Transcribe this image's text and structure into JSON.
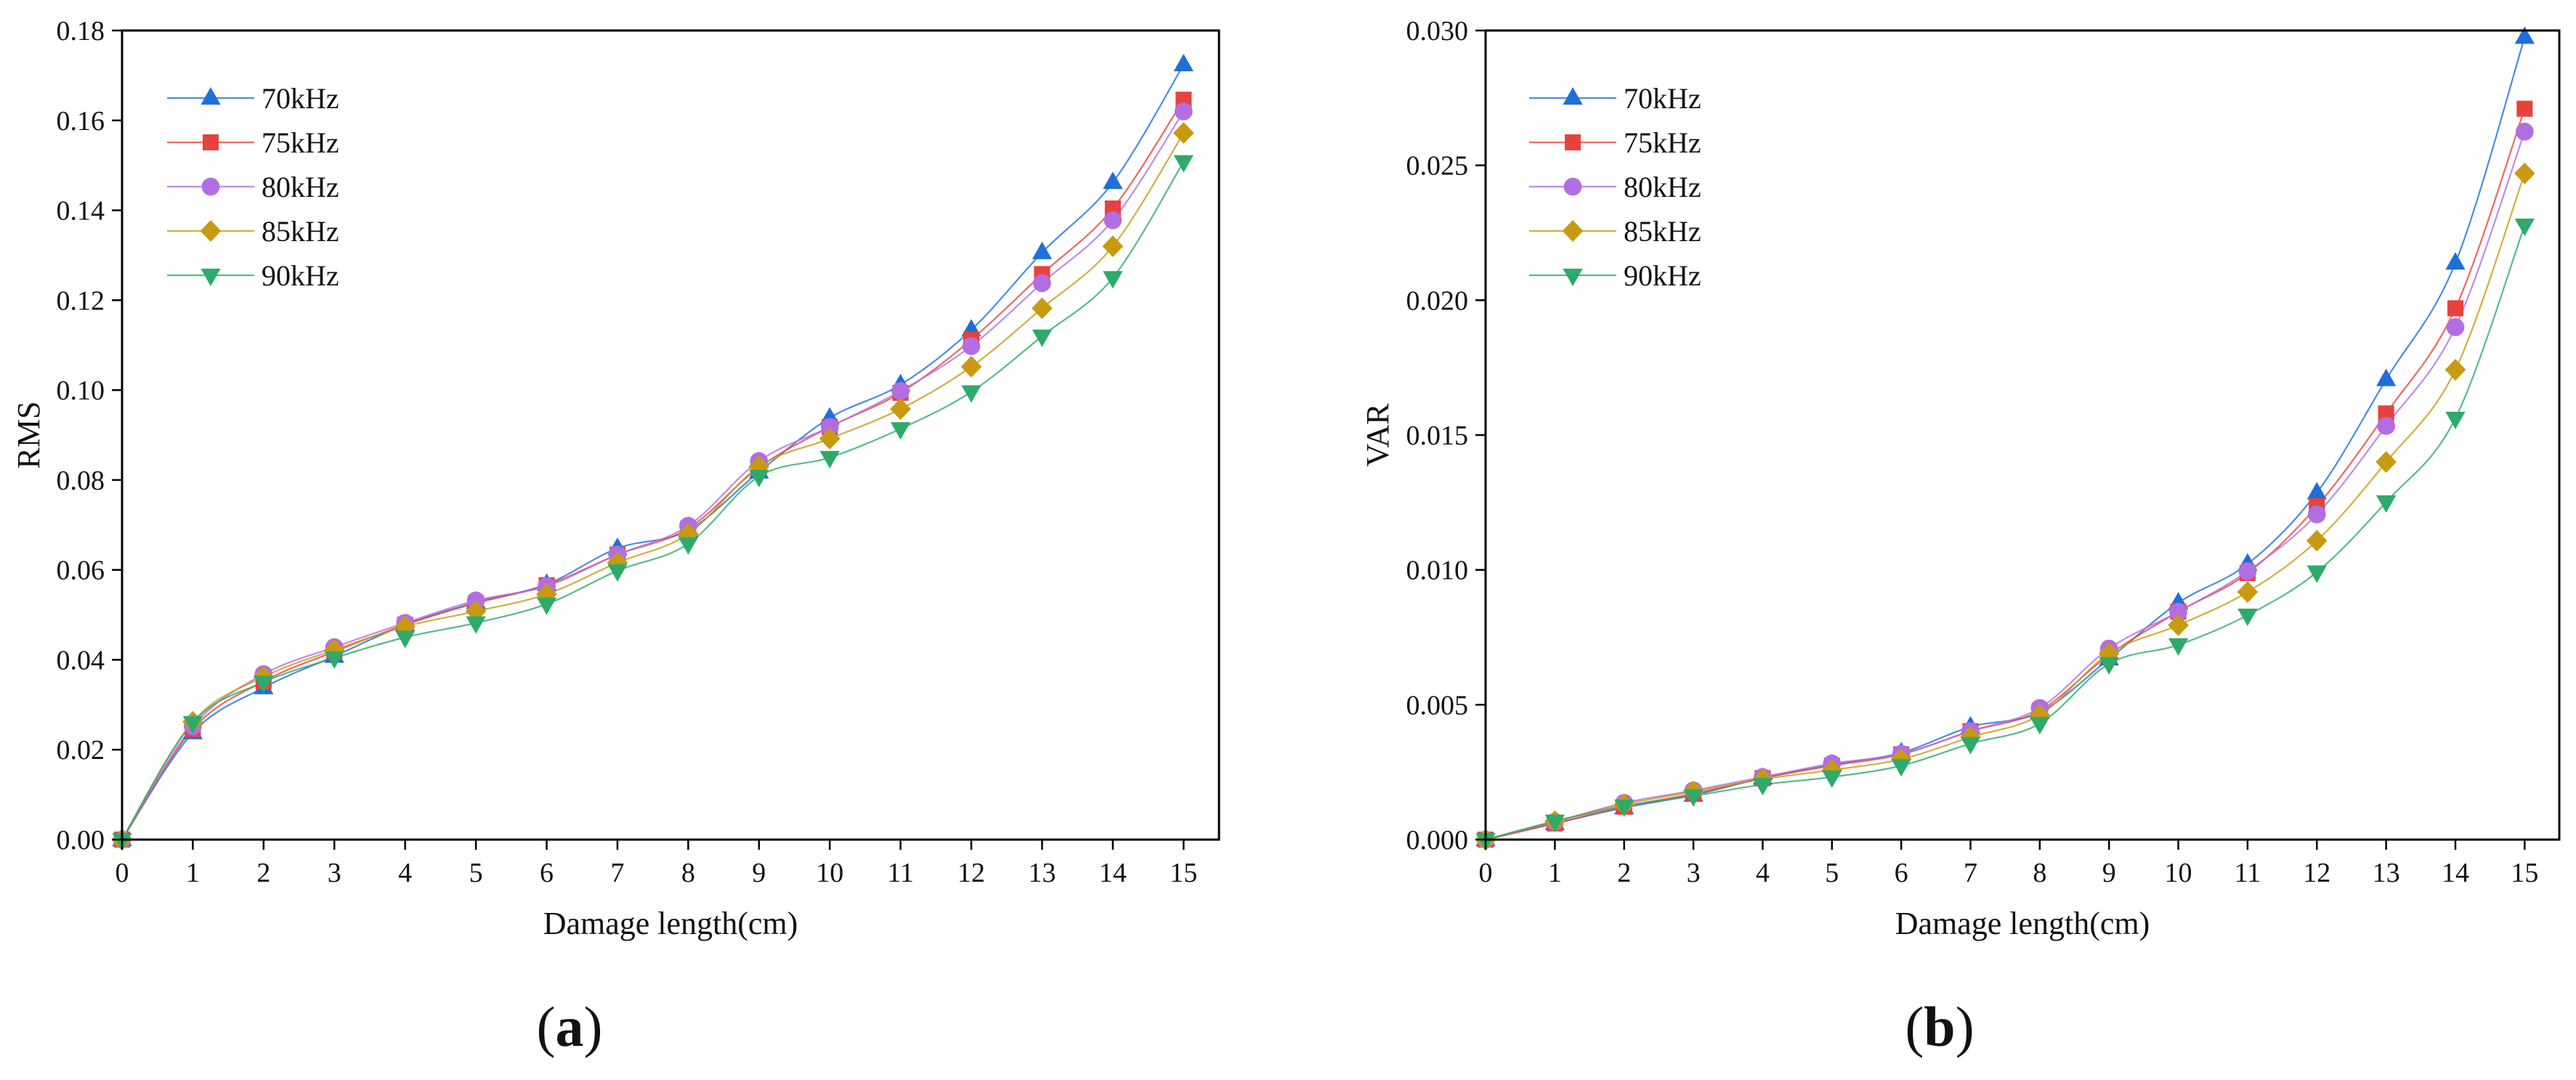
{
  "chart_data": [
    {
      "type": "line",
      "panel": "a",
      "xlabel": "Damage length(cm)",
      "ylabel": "RMS",
      "xlim": [
        0,
        15.5
      ],
      "ylim": [
        0,
        0.18
      ],
      "xticks": [
        0,
        1,
        2,
        3,
        4,
        5,
        6,
        7,
        8,
        9,
        10,
        11,
        12,
        13,
        14,
        15
      ],
      "yticks": [
        0.0,
        0.02,
        0.04,
        0.06,
        0.08,
        0.1,
        0.12,
        0.14,
        0.16,
        0.18
      ],
      "ytick_labels": [
        "0.00",
        "0.02",
        "0.04",
        "0.06",
        "0.08",
        "0.10",
        "0.12",
        "0.14",
        "0.16",
        "0.18"
      ],
      "legend_position": "top-left",
      "x": [
        0,
        1,
        2,
        3,
        4,
        5,
        6,
        7,
        8,
        9,
        10,
        11,
        12,
        13,
        14,
        15
      ],
      "series": [
        {
          "name": "70kHz",
          "color": "#1f6fd8",
          "marker": "triangle-up",
          "values": [
            0,
            0.0238,
            0.0338,
            0.0408,
            0.0478,
            0.0528,
            0.0568,
            0.0648,
            0.0688,
            0.0818,
            0.0938,
            0.1012,
            0.1134,
            0.1306,
            0.1462,
            0.1724
          ]
        },
        {
          "name": "75kHz",
          "color": "#e8423f",
          "marker": "square",
          "values": [
            0,
            0.0246,
            0.0352,
            0.0418,
            0.0478,
            0.0526,
            0.0566,
            0.0634,
            0.0692,
            0.0828,
            0.0918,
            0.0994,
            0.1112,
            0.1258,
            0.1404,
            0.1646
          ]
        },
        {
          "name": "80kHz",
          "color": "#b26ee0",
          "marker": "circle",
          "values": [
            0,
            0.0252,
            0.0368,
            0.0428,
            0.0482,
            0.0532,
            0.0564,
            0.0634,
            0.0698,
            0.0842,
            0.0918,
            0.0998,
            0.1098,
            0.1238,
            0.1378,
            0.162
          ]
        },
        {
          "name": "85kHz",
          "color": "#c89a12",
          "marker": "diamond",
          "values": [
            0,
            0.0262,
            0.0362,
            0.0422,
            0.0474,
            0.0508,
            0.0546,
            0.0616,
            0.068,
            0.083,
            0.0892,
            0.0958,
            0.1052,
            0.1182,
            0.132,
            0.1572
          ]
        },
        {
          "name": "90kHz",
          "color": "#2eaa6a",
          "marker": "triangle-down",
          "values": [
            0,
            0.026,
            0.035,
            0.0404,
            0.045,
            0.0482,
            0.0524,
            0.0598,
            0.0658,
            0.0808,
            0.085,
            0.0914,
            0.0996,
            0.112,
            0.125,
            0.1508
          ]
        }
      ]
    },
    {
      "type": "line",
      "panel": "b",
      "xlabel": "Damage length(cm)",
      "ylabel": "VAR",
      "xlim": [
        0,
        15.5
      ],
      "ylim": [
        0,
        0.03
      ],
      "xticks": [
        0,
        1,
        2,
        3,
        4,
        5,
        6,
        7,
        8,
        9,
        10,
        11,
        12,
        13,
        14,
        15
      ],
      "yticks": [
        0.0,
        0.005,
        0.01,
        0.015,
        0.02,
        0.025,
        0.03
      ],
      "ytick_labels": [
        "0.000",
        "0.005",
        "0.010",
        "0.015",
        "0.020",
        "0.025",
        "0.030"
      ],
      "legend_position": "top-left",
      "x": [
        0,
        1,
        2,
        3,
        4,
        5,
        6,
        7,
        8,
        9,
        10,
        11,
        12,
        13,
        14,
        15
      ],
      "series": [
        {
          "name": "70kHz",
          "color": "#1f6fd8",
          "marker": "triangle-up",
          "values": [
            0,
            0.0006,
            0.00118,
            0.00165,
            0.00228,
            0.00278,
            0.00322,
            0.00418,
            0.00472,
            0.0067,
            0.00878,
            0.01022,
            0.01286,
            0.01706,
            0.02138,
            0.02975
          ]
        },
        {
          "name": "75kHz",
          "color": "#e8423f",
          "marker": "square",
          "values": [
            0,
            0.0006,
            0.00122,
            0.0017,
            0.00228,
            0.00274,
            0.00316,
            0.00402,
            0.00478,
            0.00685,
            0.00845,
            0.00988,
            0.01236,
            0.0158,
            0.0197,
            0.0271
          ]
        },
        {
          "name": "80kHz",
          "color": "#b26ee0",
          "marker": "circle",
          "values": [
            0,
            0.00066,
            0.00136,
            0.00182,
            0.00232,
            0.00282,
            0.00318,
            0.00402,
            0.00488,
            0.00708,
            0.00845,
            0.00995,
            0.01206,
            0.01534,
            0.019,
            0.02625
          ]
        },
        {
          "name": "85kHz",
          "color": "#c89a12",
          "marker": "diamond",
          "values": [
            0,
            0.00068,
            0.0013,
            0.00178,
            0.00224,
            0.00258,
            0.00298,
            0.0038,
            0.00462,
            0.0069,
            0.00795,
            0.00918,
            0.01108,
            0.014,
            0.01742,
            0.0247
          ]
        },
        {
          "name": "90kHz",
          "color": "#2eaa6a",
          "marker": "triangle-down",
          "values": [
            0,
            0.00068,
            0.00124,
            0.00162,
            0.00204,
            0.00232,
            0.00274,
            0.00356,
            0.0043,
            0.00652,
            0.00722,
            0.00832,
            0.00992,
            0.01252,
            0.01562,
            0.02278
          ]
        }
      ]
    }
  ],
  "panel_labels": {
    "a": {
      "open": "(",
      "letter": "a",
      "close": ")"
    },
    "b": {
      "open": "(",
      "letter": "b",
      "close": ")"
    }
  }
}
